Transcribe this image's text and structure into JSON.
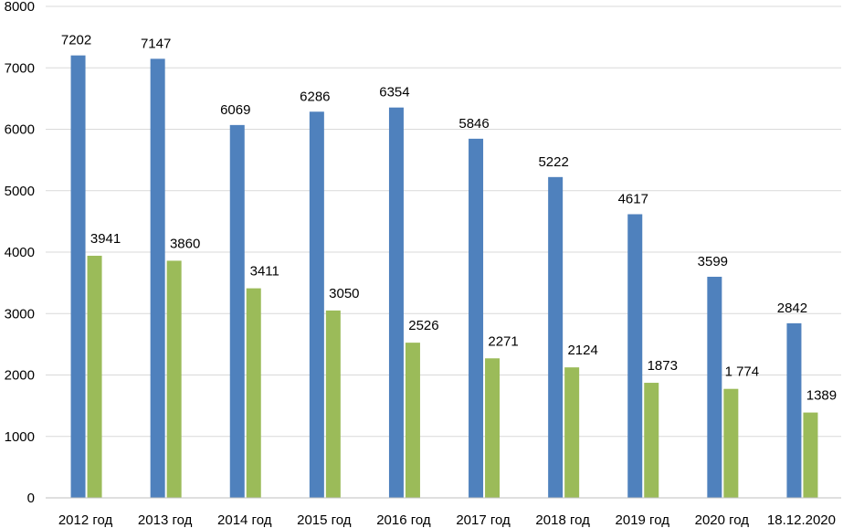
{
  "chart_data": {
    "type": "bar",
    "categories": [
      "2012 год",
      "2013 год",
      "2014 год",
      "2015 год",
      "2016 год",
      "2017 год",
      "2018 год",
      "2019 год",
      "2020 год",
      "18.12.2020"
    ],
    "series": [
      {
        "values": [
          7202,
          7147,
          6069,
          6286,
          6354,
          5846,
          5222,
          4617,
          3599,
          2842
        ],
        "labels": [
          "7202",
          "7147",
          "6069",
          "6286",
          "6354",
          "5846",
          "5222",
          "4617",
          "3599",
          "2842"
        ],
        "color": "#4f81bd"
      },
      {
        "values": [
          3941,
          3860,
          3411,
          3050,
          2526,
          2271,
          2124,
          1873,
          1774,
          1389
        ],
        "labels": [
          "3941",
          "3860",
          "3411",
          "3050",
          "2526",
          "2271",
          "2124",
          "1873",
          "1 774",
          "1389"
        ],
        "color": "#9bbb59"
      }
    ],
    "yticks": [
      "0",
      "1000",
      "2000",
      "3000",
      "4000",
      "5000",
      "6000",
      "7000",
      "8000"
    ],
    "ylim": [
      0,
      8000
    ],
    "grid": true,
    "title": "",
    "xlabel": "",
    "ylabel": ""
  }
}
